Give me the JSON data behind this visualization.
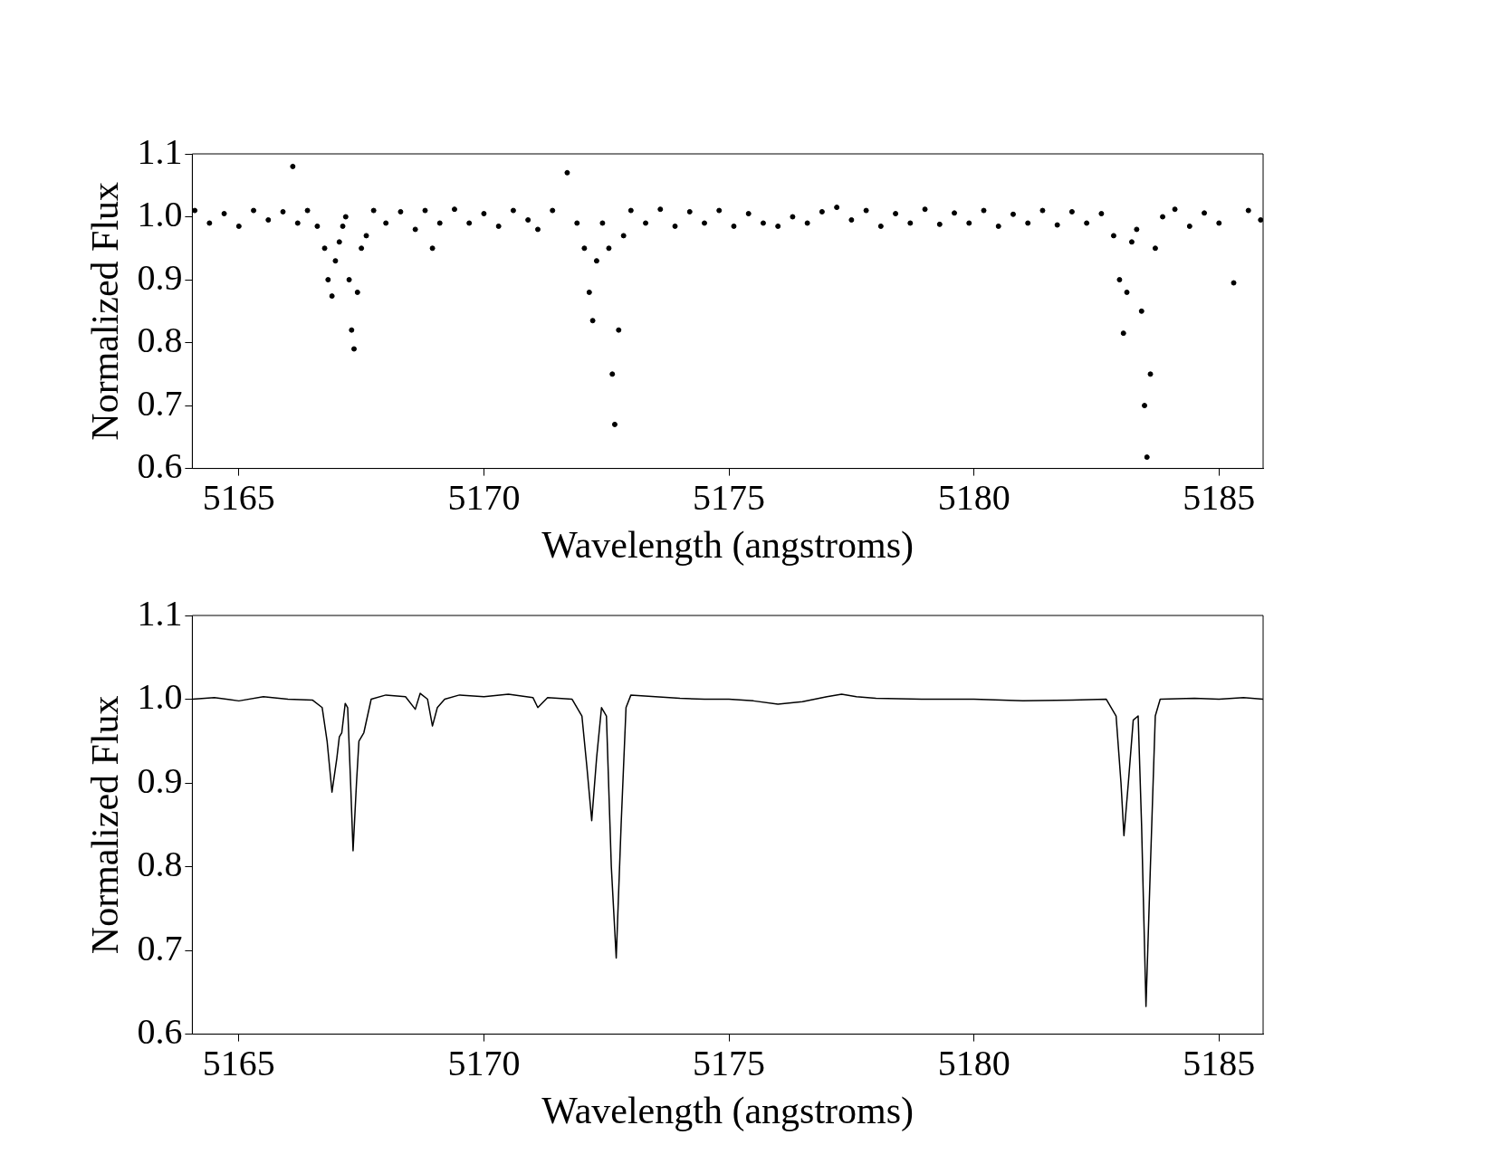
{
  "chart_data": [
    {
      "type": "scatter",
      "xlabel": "Wavelength (angstroms)",
      "ylabel": "Normalized Flux",
      "xlim": [
        5164.05,
        5185.9
      ],
      "xticks": [
        5165,
        5170,
        5175,
        5180,
        5185
      ],
      "ylim": [
        0.6,
        1.1
      ],
      "yticks": [
        0.6,
        0.7,
        0.8,
        0.9,
        {
          "value": 1,
          "label": "1.0"
        },
        1.1
      ],
      "grid": false,
      "legend": false,
      "marker": "circle",
      "series": [
        {
          "color": "#000000",
          "x": [
            5164.1,
            5164.4,
            5164.7,
            5165.0,
            5165.3,
            5165.6,
            5165.9,
            5166.1,
            5166.2,
            5166.4,
            5166.6,
            5166.75,
            5166.82,
            5166.9,
            5166.97,
            5167.05,
            5167.12,
            5167.18,
            5167.25,
            5167.3,
            5167.35,
            5167.42,
            5167.5,
            5167.6,
            5167.75,
            5168.0,
            5168.3,
            5168.6,
            5168.8,
            5168.95,
            5169.1,
            5169.4,
            5169.7,
            5170.0,
            5170.3,
            5170.6,
            5170.9,
            5171.1,
            5171.4,
            5171.7,
            5171.9,
            5172.05,
            5172.15,
            5172.22,
            5172.3,
            5172.42,
            5172.55,
            5172.62,
            5172.67,
            5172.75,
            5172.85,
            5173.0,
            5173.3,
            5173.6,
            5173.9,
            5174.2,
            5174.5,
            5174.8,
            5175.1,
            5175.4,
            5175.7,
            5176.0,
            5176.3,
            5176.6,
            5176.9,
            5177.2,
            5177.5,
            5177.8,
            5178.1,
            5178.4,
            5178.7,
            5179.0,
            5179.3,
            5179.6,
            5179.9,
            5180.2,
            5180.5,
            5180.8,
            5181.1,
            5181.4,
            5181.7,
            5182.0,
            5182.3,
            5182.6,
            5182.85,
            5182.97,
            5183.05,
            5183.12,
            5183.22,
            5183.32,
            5183.42,
            5183.48,
            5183.53,
            5183.6,
            5183.7,
            5183.85,
            5184.1,
            5184.4,
            5184.7,
            5185.0,
            5185.3,
            5185.6,
            5185.85
          ],
          "values": [
            1.01,
            0.99,
            1.005,
            0.985,
            1.01,
            0.995,
            1.008,
            1.08,
            0.99,
            1.01,
            0.985,
            0.95,
            0.9,
            0.874,
            0.93,
            0.96,
            0.985,
            1.0,
            0.9,
            0.82,
            0.79,
            0.88,
            0.95,
            0.97,
            1.01,
            0.99,
            1.008,
            0.98,
            1.01,
            0.95,
            0.99,
            1.012,
            0.99,
            1.005,
            0.985,
            1.01,
            0.995,
            0.98,
            1.01,
            1.07,
            0.99,
            0.95,
            0.88,
            0.835,
            0.93,
            0.99,
            0.95,
            0.75,
            0.67,
            0.82,
            0.97,
            1.01,
            0.99,
            1.012,
            0.985,
            1.008,
            0.99,
            1.01,
            0.985,
            1.005,
            0.99,
            0.985,
            1.0,
            0.99,
            1.008,
            1.015,
            0.995,
            1.01,
            0.985,
            1.005,
            0.99,
            1.012,
            0.988,
            1.006,
            0.99,
            1.01,
            0.985,
            1.004,
            0.99,
            1.01,
            0.987,
            1.008,
            0.99,
            1.005,
            0.97,
            0.9,
            0.815,
            0.88,
            0.96,
            0.98,
            0.85,
            0.7,
            0.618,
            0.75,
            0.95,
            1.0,
            1.012,
            0.985,
            1.006,
            0.99,
            0.895,
            1.01,
            0.995
          ]
        }
      ]
    },
    {
      "type": "line",
      "xlabel": "Wavelength (angstroms)",
      "ylabel": "Normalized Flux",
      "xlim": [
        5164.05,
        5185.9
      ],
      "xticks": [
        5165,
        5170,
        5175,
        5180,
        5185
      ],
      "ylim": [
        0.6,
        1.1
      ],
      "yticks": [
        0.6,
        0.7,
        0.8,
        0.9,
        {
          "value": 1,
          "label": "1.0"
        },
        1.1
      ],
      "grid": false,
      "legend": false,
      "marker": "none",
      "line_style": "solid",
      "series": [
        {
          "color": "#000000",
          "x": [
            5164.05,
            5164.5,
            5165,
            5165.5,
            5166,
            5166.5,
            5166.7,
            5166.8,
            5166.9,
            5167.0,
            5167.05,
            5167.1,
            5167.17,
            5167.22,
            5167.28,
            5167.33,
            5167.4,
            5167.45,
            5167.55,
            5167.7,
            5168,
            5168.4,
            5168.6,
            5168.7,
            5168.85,
            5168.95,
            5169.05,
            5169.2,
            5169.5,
            5170,
            5170.5,
            5171,
            5171.1,
            5171.3,
            5171.8,
            5172.0,
            5172.1,
            5172.2,
            5172.3,
            5172.4,
            5172.5,
            5172.6,
            5172.7,
            5172.8,
            5172.9,
            5173.0,
            5173.5,
            5174,
            5174.5,
            5175,
            5175.5,
            5176,
            5176.5,
            5177,
            5177.3,
            5177.6,
            5178,
            5179,
            5180,
            5181,
            5182,
            5182.7,
            5182.9,
            5183.0,
            5183.06,
            5183.15,
            5183.25,
            5183.35,
            5183.42,
            5183.51,
            5183.6,
            5183.7,
            5183.8,
            5184.5,
            5185,
            5185.5,
            5185.9
          ],
          "values": [
            1.0,
            1.002,
            0.998,
            1.003,
            1.0,
            0.999,
            0.99,
            0.95,
            0.889,
            0.93,
            0.955,
            0.96,
            0.995,
            0.99,
            0.9,
            0.819,
            0.9,
            0.95,
            0.96,
            1.0,
            1.005,
            1.003,
            0.988,
            1.007,
            1.0,
            0.968,
            0.99,
            1.0,
            1.005,
            1.003,
            1.006,
            1.002,
            0.99,
            1.002,
            1.0,
            0.98,
            0.92,
            0.855,
            0.93,
            0.99,
            0.98,
            0.8,
            0.691,
            0.85,
            0.99,
            1.005,
            1.003,
            1.001,
            1.0,
            1.0,
            0.998,
            0.994,
            0.997,
            1.003,
            1.006,
            1.003,
            1.001,
            1.0,
            1.0,
            0.998,
            0.999,
            1.0,
            0.98,
            0.9,
            0.837,
            0.9,
            0.975,
            0.98,
            0.85,
            0.633,
            0.8,
            0.98,
            1.0,
            1.001,
            1.0,
            1.002,
            1.0
          ]
        }
      ]
    }
  ]
}
